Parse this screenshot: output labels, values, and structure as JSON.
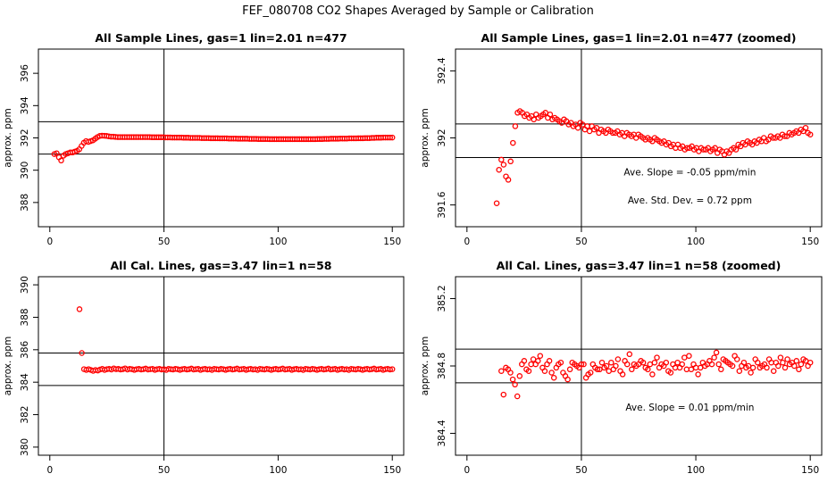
{
  "figure": {
    "title": "FEF_080708  CO2 Shapes Averaged by Sample or Calibration"
  },
  "colors": {
    "points": "#ff0000",
    "axes": "#000000",
    "background": "#ffffff"
  },
  "chart_data": [
    {
      "type": "scatter",
      "title": "All Sample Lines, gas=1 lin=2.01 n=477",
      "xlabel": "",
      "ylabel": "approx. ppm",
      "xlim": [
        -5,
        155
      ],
      "ylim": [
        386.5,
        397.5
      ],
      "xticks": [
        0,
        50,
        100,
        150
      ],
      "yticks": [
        388,
        390,
        392,
        394,
        396
      ],
      "hlines": [
        391,
        393
      ],
      "vlines": [
        50
      ],
      "annotations": [],
      "series": [
        {
          "x_start": 2,
          "x_end": 150,
          "y": [
            391.0,
            391.05,
            390.8,
            390.6,
            390.9,
            391.0,
            391.05,
            391.1,
            391.1,
            391.15,
            391.2,
            391.3,
            391.5,
            391.7,
            391.8,
            391.75,
            391.8,
            391.85,
            391.95,
            392.05,
            392.12,
            392.14,
            392.13,
            392.12,
            392.1,
            392.08,
            392.08,
            392.06,
            392.05,
            392.05,
            392.05,
            392.05,
            392.05,
            392.05,
            392.05,
            392.05,
            392.05,
            392.05,
            392.05,
            392.05,
            392.05,
            392.05,
            392.05,
            392.04,
            392.04,
            392.04,
            392.04,
            392.04,
            392.04,
            392.03,
            392.03,
            392.03,
            392.02,
            392.02,
            392.02,
            392.02,
            392.02,
            392.01,
            392.01,
            392.01,
            392.0,
            392.0,
            392.0,
            392.0,
            392.0,
            391.99,
            391.99,
            391.99,
            391.99,
            391.98,
            391.98,
            391.98,
            391.98,
            391.97,
            391.97,
            391.97,
            391.97,
            391.96,
            391.96,
            391.96,
            391.96,
            391.95,
            391.95,
            391.95,
            391.95,
            391.95,
            391.94,
            391.94,
            391.94,
            391.94,
            391.93,
            391.93,
            391.93,
            391.93,
            391.93,
            391.92,
            391.92,
            391.92,
            391.92,
            391.92,
            391.92,
            391.92,
            391.92,
            391.92,
            391.92,
            391.92,
            391.92,
            391.92,
            391.92,
            391.92,
            391.92,
            391.92,
            391.92,
            391.92,
            391.92,
            391.92,
            391.93,
            391.93,
            391.93,
            391.94,
            391.94,
            391.94,
            391.95,
            391.95,
            391.95,
            391.95,
            391.96,
            391.96,
            391.96,
            391.96,
            391.97,
            391.97,
            391.97,
            391.97,
            391.98,
            391.98,
            391.98,
            391.99,
            391.99,
            391.99,
            392.0,
            392.0,
            392.01,
            392.01,
            392.01,
            392.02,
            392.02,
            392.02,
            392.02,
            392.02
          ]
        }
      ]
    },
    {
      "type": "scatter",
      "title": "All Sample Lines, gas=1 lin=2.01 n=477 (zoomed)",
      "xlabel": "",
      "ylabel": "approx. ppm",
      "xlim": [
        -5,
        155
      ],
      "ylim": [
        391.47,
        392.53
      ],
      "xticks": [
        0,
        50,
        100,
        150
      ],
      "yticks": [
        391.6,
        392.0,
        392.4
      ],
      "hlines": [
        391.883,
        392.083
      ],
      "vlines": [
        50
      ],
      "annotations": [
        "Ave. Slope = -0.05  ppm/min",
        "Ave. Std. Dev. = 0.72  ppm"
      ],
      "series": [
        {
          "x_start": 13,
          "x_end": 150,
          "y": [
            391.61,
            391.81,
            391.87,
            391.84,
            391.77,
            391.75,
            391.86,
            391.97,
            392.07,
            392.15,
            392.16,
            392.15,
            392.13,
            392.14,
            392.12,
            392.13,
            392.11,
            392.14,
            392.12,
            392.13,
            392.14,
            392.15,
            392.12,
            392.14,
            392.11,
            392.12,
            392.11,
            392.1,
            392.09,
            392.11,
            392.1,
            392.08,
            392.09,
            392.07,
            392.08,
            392.06,
            392.09,
            392.08,
            392.05,
            392.07,
            392.04,
            392.07,
            392.05,
            392.06,
            392.03,
            392.05,
            392.04,
            392.03,
            392.05,
            392.04,
            392.03,
            392.03,
            392.04,
            392.02,
            392.03,
            392.01,
            392.03,
            392.02,
            392.01,
            392.02,
            392.0,
            392.02,
            392.01,
            392.0,
            391.99,
            392.0,
            391.99,
            391.98,
            392.0,
            391.99,
            391.98,
            391.97,
            391.98,
            391.96,
            391.97,
            391.95,
            391.96,
            391.94,
            391.96,
            391.94,
            391.95,
            391.93,
            391.94,
            391.94,
            391.95,
            391.93,
            391.94,
            391.92,
            391.94,
            391.93,
            391.93,
            391.94,
            391.92,
            391.93,
            391.94,
            391.91,
            391.93,
            391.92,
            391.9,
            391.92,
            391.91,
            391.93,
            391.94,
            391.93,
            391.96,
            391.95,
            391.97,
            391.96,
            391.98,
            391.97,
            391.96,
            391.98,
            391.97,
            391.99,
            391.98,
            392.0,
            391.98,
            391.99,
            392.01,
            392.0,
            392.0,
            392.01,
            392.0,
            392.02,
            392.01,
            392.01,
            392.03,
            392.02,
            392.03,
            392.04,
            392.03,
            392.05,
            392.04,
            392.06,
            392.03,
            392.02
          ]
        }
      ]
    },
    {
      "type": "scatter",
      "title": "All Cal. Lines, gas=3.47 lin=1 n=58",
      "xlabel": "",
      "ylabel": "approx. ppm",
      "xlim": [
        -5,
        155
      ],
      "ylim": [
        379.5,
        390.5
      ],
      "xticks": [
        0,
        50,
        100,
        150
      ],
      "yticks": [
        380,
        382,
        384,
        386,
        388,
        390
      ],
      "hlines": [
        383.8,
        385.8
      ],
      "vlines": [
        50
      ],
      "annotations": [],
      "series": [
        {
          "x_start": 13,
          "x_end": 150,
          "y": [
            388.5,
            385.8,
            384.8,
            384.75,
            384.8,
            384.75,
            384.7,
            384.75,
            384.72,
            384.78,
            384.82,
            384.75,
            384.8,
            384.82,
            384.78,
            384.85,
            384.8,
            384.82,
            384.78,
            384.8,
            384.85,
            384.78,
            384.82,
            384.8,
            384.76,
            384.8,
            384.82,
            384.78,
            384.8,
            384.84,
            384.78,
            384.8,
            384.82,
            384.76,
            384.8,
            384.82,
            384.78,
            384.8,
            384.75,
            384.82,
            384.8,
            384.78,
            384.82,
            384.8,
            384.76,
            384.8,
            384.82,
            384.78,
            384.8,
            384.84,
            384.78,
            384.8,
            384.82,
            384.76,
            384.8,
            384.82,
            384.78,
            384.8,
            384.75,
            384.82,
            384.8,
            384.78,
            384.82,
            384.8,
            384.76,
            384.8,
            384.82,
            384.78,
            384.8,
            384.84,
            384.78,
            384.8,
            384.82,
            384.76,
            384.8,
            384.82,
            384.78,
            384.8,
            384.75,
            384.82,
            384.8,
            384.78,
            384.82,
            384.8,
            384.76,
            384.8,
            384.82,
            384.78,
            384.8,
            384.84,
            384.78,
            384.8,
            384.82,
            384.76,
            384.8,
            384.82,
            384.78,
            384.8,
            384.75,
            384.82,
            384.8,
            384.78,
            384.82,
            384.8,
            384.76,
            384.8,
            384.82,
            384.78,
            384.8,
            384.84,
            384.78,
            384.8,
            384.82,
            384.76,
            384.8,
            384.82,
            384.78,
            384.8,
            384.75,
            384.82,
            384.8,
            384.78,
            384.82,
            384.8,
            384.76,
            384.8,
            384.82,
            384.78,
            384.8,
            384.84,
            384.78,
            384.8,
            384.82,
            384.76,
            384.8,
            384.82,
            384.78,
            384.8
          ]
        }
      ]
    },
    {
      "type": "scatter",
      "title": "All Cal. Lines, gas=3.47 lin=1 n=58 (zoomed)",
      "xlabel": "",
      "ylabel": "approx. ppm",
      "xlim": [
        -5,
        155
      ],
      "ylim": [
        384.27,
        385.33
      ],
      "xticks": [
        0,
        50,
        100,
        150
      ],
      "yticks": [
        384.4,
        384.8,
        385.2
      ],
      "hlines": [
        384.7,
        384.9
      ],
      "vlines": [
        50
      ],
      "annotations": [
        "Ave. Slope =  0.01  ppm/min"
      ],
      "series": [
        {
          "x_start": 15,
          "x_end": 150,
          "y": [
            384.77,
            384.63,
            384.79,
            384.78,
            384.76,
            384.72,
            384.69,
            384.62,
            384.74,
            384.81,
            384.83,
            384.78,
            384.77,
            384.81,
            384.84,
            384.81,
            384.83,
            384.86,
            384.79,
            384.77,
            384.81,
            384.83,
            384.76,
            384.73,
            384.79,
            384.81,
            384.82,
            384.76,
            384.74,
            384.72,
            384.78,
            384.82,
            384.81,
            384.8,
            384.79,
            384.81,
            384.81,
            384.73,
            384.75,
            384.76,
            384.81,
            384.79,
            384.78,
            384.78,
            384.82,
            384.79,
            384.8,
            384.77,
            384.82,
            384.78,
            384.8,
            384.84,
            384.77,
            384.75,
            384.83,
            384.81,
            384.87,
            384.78,
            384.81,
            384.8,
            384.81,
            384.83,
            384.82,
            384.79,
            384.78,
            384.81,
            384.75,
            384.82,
            384.85,
            384.79,
            384.81,
            384.8,
            384.82,
            384.77,
            384.76,
            384.81,
            384.79,
            384.82,
            384.79,
            384.81,
            384.85,
            384.78,
            384.86,
            384.78,
            384.81,
            384.79,
            384.75,
            384.79,
            384.82,
            384.8,
            384.81,
            384.83,
            384.81,
            384.85,
            384.88,
            384.81,
            384.78,
            384.84,
            384.83,
            384.82,
            384.81,
            384.8,
            384.86,
            384.84,
            384.77,
            384.8,
            384.82,
            384.79,
            384.8,
            384.76,
            384.79,
            384.84,
            384.82,
            384.79,
            384.8,
            384.81,
            384.79,
            384.84,
            384.82,
            384.77,
            384.82,
            384.8,
            384.85,
            384.82,
            384.79,
            384.84,
            384.81,
            384.82,
            384.8,
            384.83,
            384.78,
            384.81,
            384.84,
            384.83,
            384.8,
            384.82
          ]
        }
      ]
    }
  ]
}
